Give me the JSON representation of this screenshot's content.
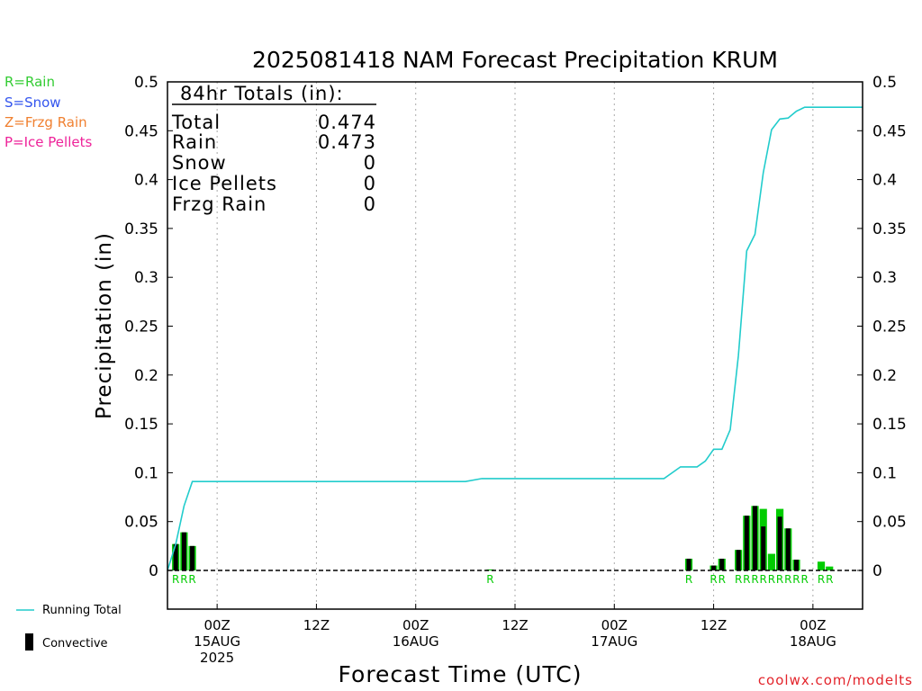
{
  "title": "2025081418 NAM Forecast Precipitation KRUM",
  "legend_top": [
    {
      "label": "R=Rain",
      "color": "#33cc33"
    },
    {
      "label": "S=Snow",
      "color": "#3355ee"
    },
    {
      "label": "Z=Frzg Rain",
      "color": "#f08030"
    },
    {
      "label": "P=Ice Pellets",
      "color": "#ee2299"
    }
  ],
  "totals_box": {
    "heading": "84hr Totals (in):",
    "rows": [
      {
        "label": "Total",
        "value": "0.474"
      },
      {
        "label": "Rain",
        "value": "0.473"
      },
      {
        "label": "Snow",
        "value": "0"
      },
      {
        "label": "Ice Pellets",
        "value": "0"
      },
      {
        "label": "Frzg Rain",
        "value": "0"
      }
    ]
  },
  "legend_bottom": {
    "running_total": "Running Total",
    "convective": "Convective"
  },
  "credit": "coolwx.com/modelts",
  "colors": {
    "rain_bar": "#00cc00",
    "convective_bar": "#000000",
    "running_total": "#22cccc",
    "grid": "#aaaaaa"
  },
  "chart_data": {
    "type": "bar",
    "title": "2025081418 NAM Forecast Precipitation KRUM",
    "ylabel": "Precipitation (in)",
    "xlabel": "Forecast Time (UTC)",
    "ylim": [
      0,
      0.5
    ],
    "y_ticks": [
      "0",
      "0.05",
      "0.1",
      "0.15",
      "0.2",
      "0.25",
      "0.3",
      "0.35",
      "0.4",
      "0.45",
      "0.5"
    ],
    "x_range_hours": [
      0,
      84
    ],
    "x_ticks": [
      {
        "hour": 6,
        "lines": [
          "00Z",
          "15AUG",
          "2025"
        ]
      },
      {
        "hour": 18,
        "lines": [
          "12Z"
        ]
      },
      {
        "hour": 30,
        "lines": [
          "00Z",
          "16AUG"
        ]
      },
      {
        "hour": 42,
        "lines": [
          "12Z"
        ]
      },
      {
        "hour": 54,
        "lines": [
          "00Z",
          "17AUG"
        ]
      },
      {
        "hour": 66,
        "lines": [
          "12Z"
        ]
      },
      {
        "hour": 78,
        "lines": [
          "00Z",
          "18AUG"
        ]
      }
    ],
    "grid": true,
    "series": [
      {
        "name": "Rain",
        "kind": "bar",
        "hours": [
          1,
          2,
          3,
          39,
          63,
          66,
          67,
          69,
          70,
          71,
          72,
          73,
          74,
          75,
          76,
          77,
          79,
          80
        ],
        "values": [
          0.027,
          0.039,
          0.025,
          0.001,
          0.012,
          0.005,
          0.012,
          0.021,
          0.056,
          0.066,
          0.063,
          0.017,
          0.063,
          0.043,
          0.011,
          0.0,
          0.009,
          0.004
        ],
        "ptype": [
          "R",
          "R",
          "R",
          "R",
          "R",
          "R",
          "R",
          "R",
          "R",
          "R",
          "R",
          "R",
          "R",
          "R",
          "R",
          "R",
          "R",
          "R"
        ]
      },
      {
        "name": "Convective",
        "kind": "bar",
        "hours": [
          1,
          2,
          3,
          63,
          66,
          67,
          69,
          70,
          71,
          72,
          73,
          74,
          75,
          76
        ],
        "values": [
          0.027,
          0.039,
          0.025,
          0.012,
          0.005,
          0.012,
          0.021,
          0.056,
          0.066,
          0.045,
          0.0,
          0.055,
          0.043,
          0.011
        ]
      },
      {
        "name": "Running Total",
        "kind": "line",
        "x": [
          0,
          1,
          2,
          3,
          6,
          12,
          24,
          36,
          38,
          39,
          40,
          48,
          60,
          62,
          63,
          64,
          65,
          66,
          67,
          68,
          69,
          70,
          71,
          72,
          73,
          74,
          75,
          76,
          77,
          78,
          79,
          80,
          84
        ],
        "y": [
          0.0,
          0.027,
          0.066,
          0.091,
          0.091,
          0.091,
          0.091,
          0.091,
          0.094,
          0.094,
          0.094,
          0.094,
          0.094,
          0.106,
          0.106,
          0.106,
          0.112,
          0.124,
          0.124,
          0.144,
          0.22,
          0.327,
          0.344,
          0.407,
          0.451,
          0.462,
          0.463,
          0.47,
          0.474,
          0.474,
          0.474,
          0.474,
          0.474
        ]
      }
    ]
  }
}
